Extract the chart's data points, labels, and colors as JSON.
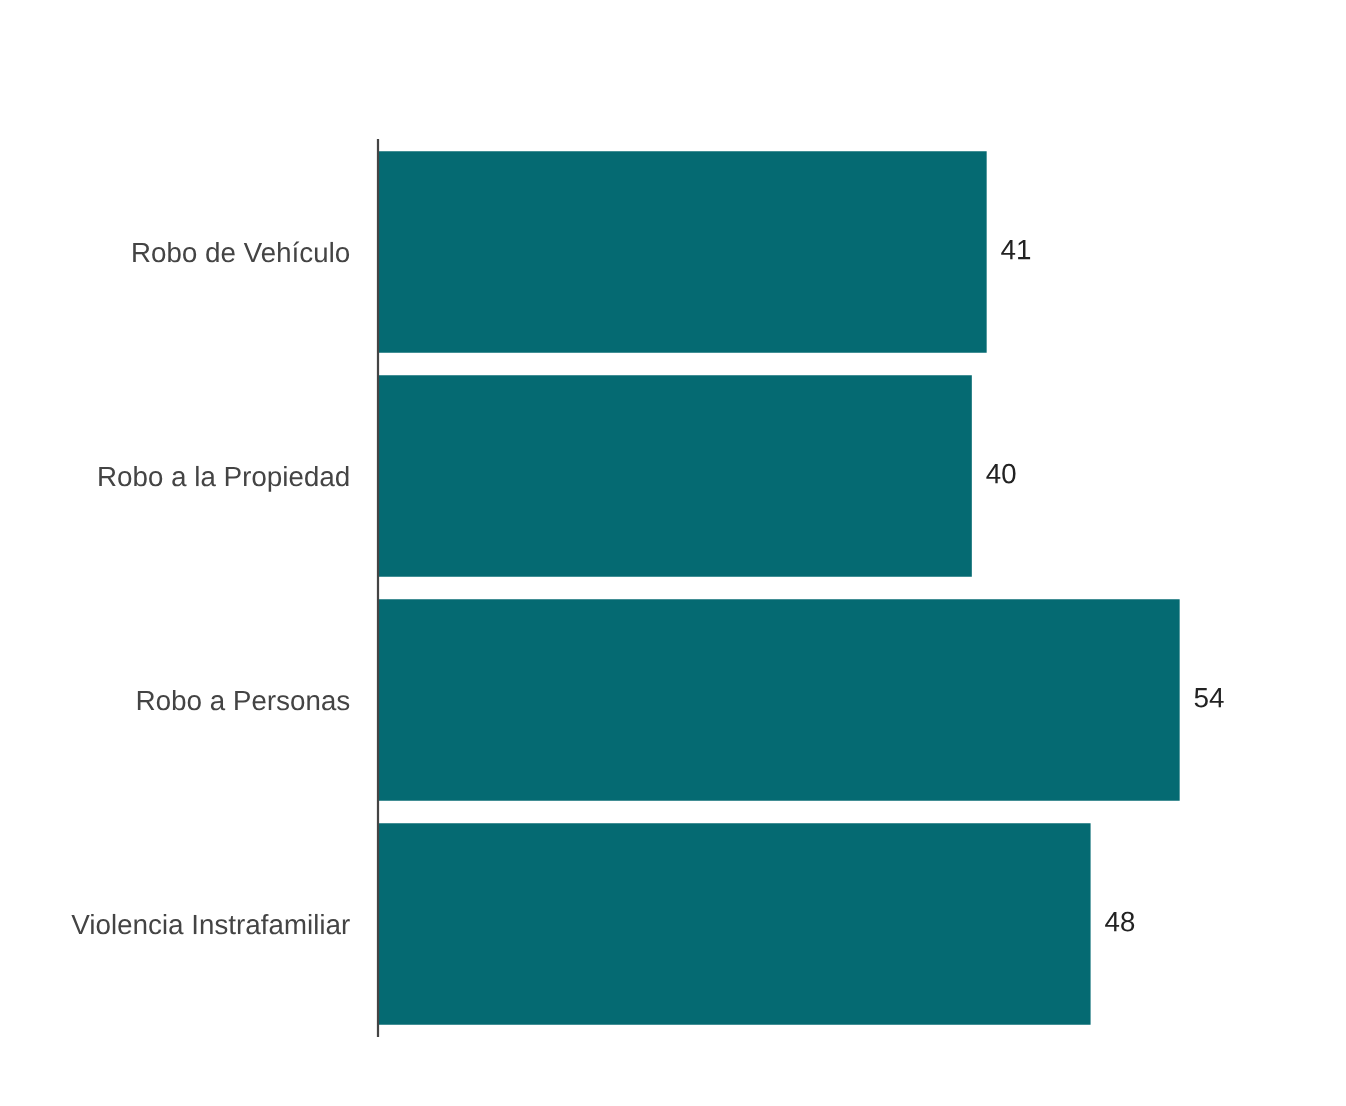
{
  "chart_data": {
    "type": "bar",
    "orientation": "horizontal",
    "categories": [
      "Robo de Vehículo",
      "Robo a la Propiedad",
      "Robo a Personas",
      "Violencia Instrafamiliar"
    ],
    "values": [
      41,
      40,
      54,
      48
    ],
    "color": "#056a72",
    "tick_labels": "y",
    "data_labels": true,
    "grid": false,
    "legend": false
  }
}
